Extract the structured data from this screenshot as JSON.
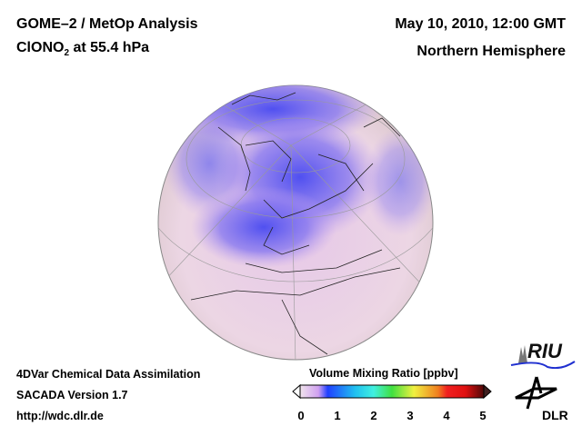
{
  "header": {
    "title_line1": "GOME–2 / MetOp Analysis",
    "title_line2_prefix": "ClONO",
    "title_line2_sub": "2",
    "title_line2_suffix": " at 55.4 hPa",
    "date": "May 10, 2010, 12:00 GMT",
    "region": "Northern Hemisphere"
  },
  "footer": {
    "line1": "4DVar Chemical Data Assimilation",
    "line2": "SACADA Version 1.7",
    "line3": "http://wdc.dlr.de"
  },
  "colorbar": {
    "title": "Volume Mixing Ratio [ppbv]",
    "ticks": [
      "0",
      "1",
      "2",
      "3",
      "4",
      "5"
    ],
    "range": [
      0,
      5
    ],
    "colors": [
      "#f0e4ec",
      "#d0a0f0",
      "#2040ff",
      "#20c0f0",
      "#40f0e0",
      "#40e040",
      "#f0f040",
      "#f08020",
      "#f02020",
      "#e01010",
      "#500808"
    ]
  },
  "logos": {
    "riu": "RIU",
    "dlr": "DLR"
  }
}
